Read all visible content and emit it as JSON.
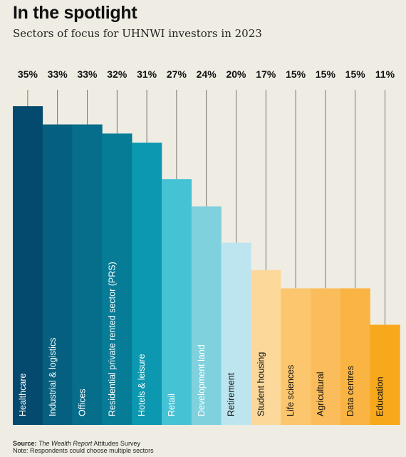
{
  "header": {
    "title": "In the spotlight",
    "subtitle": "Sectors of focus for UHNWI investors in 2023"
  },
  "footer": {
    "source_label": "Source:",
    "source_title": "The Wealth Report",
    "source_rest": " Attitudes Survey",
    "note": "Note: Respondents could choose multiple sectors"
  },
  "chart_data": {
    "type": "bar",
    "title": "In the spotlight",
    "subtitle": "Sectors of focus for UHNWI investors in 2023",
    "categories": [
      "Healthcare",
      "Industrial & logistics",
      "Offices",
      "Residential private rented sector (PRS)",
      "Hotels & leisure",
      "Retail",
      "Development land",
      "Retirement",
      "Student housing",
      "Life sciences",
      "Agricultural",
      "Data centres",
      "Education"
    ],
    "values": [
      35,
      33,
      33,
      32,
      31,
      27,
      24,
      20,
      17,
      15,
      15,
      15,
      11
    ],
    "value_labels": [
      "35%",
      "33%",
      "33%",
      "32%",
      "31%",
      "27%",
      "24%",
      "20%",
      "17%",
      "15%",
      "15%",
      "15%",
      "11%"
    ],
    "colors": [
      "#034a6e",
      "#05607f",
      "#066d8b",
      "#077c97",
      "#0b98b0",
      "#45c2d4",
      "#7fd1dd",
      "#bde5ef",
      "#fcd99b",
      "#fcc66f",
      "#fbbd5b",
      "#fab443",
      "#f7a81b"
    ],
    "label_colors": [
      "#ffffff",
      "#ffffff",
      "#ffffff",
      "#ffffff",
      "#ffffff",
      "#ffffff",
      "#ffffff",
      "#111111",
      "#111111",
      "#111111",
      "#111111",
      "#111111",
      "#111111"
    ],
    "ylim": [
      0,
      35
    ],
    "xlabel": "",
    "ylabel": "",
    "grid": false,
    "legend": "none"
  }
}
